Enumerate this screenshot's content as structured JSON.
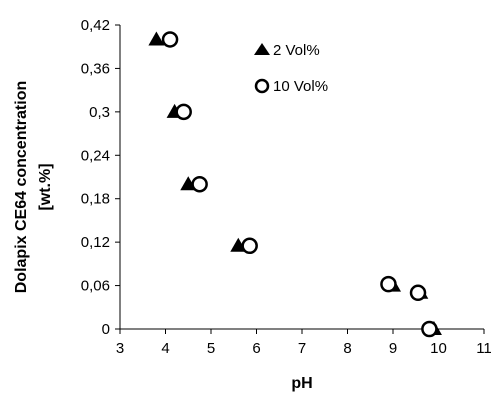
{
  "chart_data": {
    "type": "scatter",
    "title": "",
    "xlabel": "pH",
    "ylabel_line1": "Dolapix CE64 concentration",
    "ylabel_line2": "[wt.%]",
    "xlim": [
      3,
      11
    ],
    "ylim": [
      0,
      0.42
    ],
    "x_ticks": [
      3,
      4,
      5,
      6,
      7,
      8,
      9,
      10,
      11
    ],
    "x_tick_labels": [
      "3",
      "4",
      "5",
      "6",
      "7",
      "8",
      "9",
      "10",
      "11"
    ],
    "y_ticks": [
      0,
      0.06,
      0.12,
      0.18,
      0.24,
      0.3,
      0.36,
      0.42
    ],
    "y_tick_labels": [
      "0",
      "0,06",
      "0,12",
      "0,18",
      "0,24",
      "0,3",
      "0,36",
      "0,42"
    ],
    "grid": false,
    "legend_position": "top-right inside plot",
    "series": [
      {
        "name": "2 Vol%",
        "marker": "filled-triangle",
        "color": "#000000",
        "points": [
          {
            "x": 3.8,
            "y": 0.4
          },
          {
            "x": 4.2,
            "y": 0.3
          },
          {
            "x": 4.5,
            "y": 0.2
          },
          {
            "x": 5.6,
            "y": 0.115
          },
          {
            "x": 9.0,
            "y": 0.06
          },
          {
            "x": 9.6,
            "y": 0.05
          },
          {
            "x": 9.9,
            "y": 0.0
          }
        ]
      },
      {
        "name": "10 Vol%",
        "marker": "open-circle",
        "color": "#000000",
        "points": [
          {
            "x": 4.1,
            "y": 0.4
          },
          {
            "x": 4.4,
            "y": 0.3
          },
          {
            "x": 4.75,
            "y": 0.2
          },
          {
            "x": 5.85,
            "y": 0.115
          },
          {
            "x": 8.9,
            "y": 0.062
          },
          {
            "x": 9.55,
            "y": 0.05
          },
          {
            "x": 9.8,
            "y": 0.0
          }
        ]
      }
    ]
  }
}
